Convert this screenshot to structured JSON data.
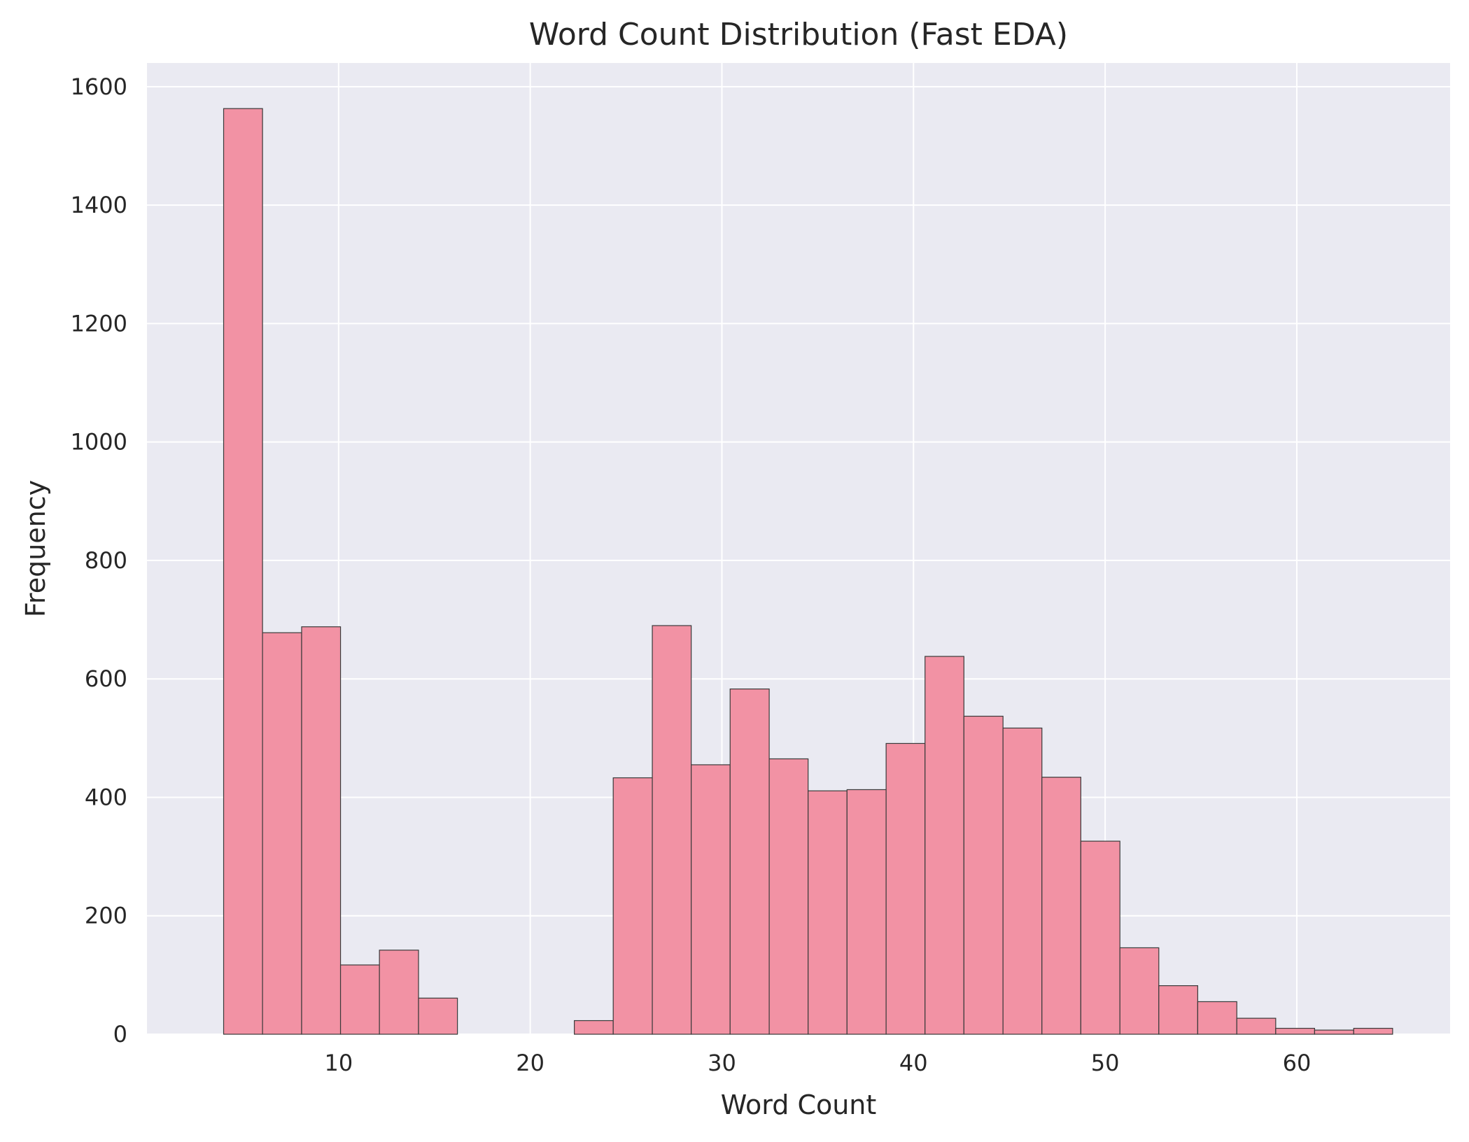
{
  "chart_data": {
    "type": "bar",
    "title": "Word Count Distribution (Fast EDA)",
    "xlabel": "Word Count",
    "ylabel": "Frequency",
    "xlim": [
      0,
      68
    ],
    "ylim": [
      0,
      1640
    ],
    "x_ticks": [
      10,
      20,
      30,
      40,
      50,
      60
    ],
    "y_ticks": [
      0,
      200,
      400,
      600,
      800,
      1000,
      1200,
      1400,
      1600
    ],
    "grid": true,
    "bin_edges": [
      4.0,
      6.03,
      8.07,
      10.1,
      12.13,
      14.17,
      16.2,
      18.23,
      20.27,
      22.3,
      24.33,
      26.37,
      28.4,
      30.43,
      32.47,
      34.5,
      36.53,
      38.57,
      40.6,
      42.63,
      44.67,
      46.7,
      48.73,
      50.77,
      52.8,
      54.83,
      56.87,
      58.9,
      60.93,
      62.97,
      65.0
    ],
    "values": [
      1563,
      678,
      688,
      117,
      142,
      61,
      0,
      0,
      0,
      23,
      433,
      690,
      455,
      583,
      465,
      411,
      413,
      491,
      638,
      537,
      517,
      434,
      326,
      146,
      82,
      55,
      27,
      10,
      7,
      10
    ],
    "colors": {
      "bar_fill": "#f292a4",
      "bar_edge": "#3a3a3a",
      "plot_background": "#eaeaf2",
      "grid": "#ffffff"
    }
  }
}
